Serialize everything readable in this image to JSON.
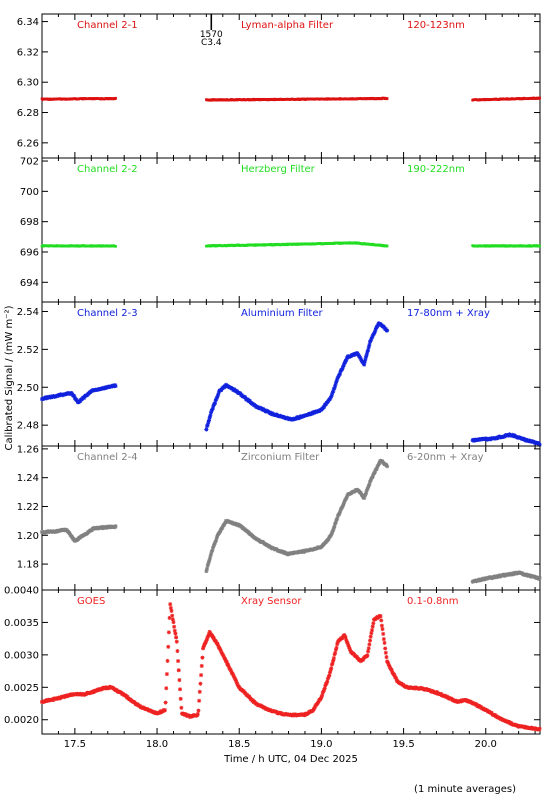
{
  "figure": {
    "ylabel": "Calibrated Signal / (mW m⁻²)",
    "xlabel": "Time / h UTC, 04 Dec 2025",
    "footnote": "(1 minute averages)",
    "flare_marker": {
      "time": 18.33,
      "label_top": "1570",
      "label_bottom": "C3.4"
    }
  },
  "chart_data": [
    {
      "type": "scatter",
      "labels": [
        "Channel 2-1",
        "Lyman-alpha Filter",
        "120-123nm"
      ],
      "color": "#dd1111",
      "marker": "dot",
      "xlim": [
        17.3,
        20.33
      ],
      "ylim": [
        6.25,
        6.345
      ],
      "yticks": [
        "6.26",
        "6.28",
        "6.30",
        "6.32",
        "6.34"
      ],
      "segments": [
        {
          "x_range": [
            17.3,
            17.75
          ],
          "points": [
            [
              17.3,
              6.2888
            ],
            [
              17.75,
              6.2892
            ]
          ]
        },
        {
          "x_range": [
            18.3,
            19.4
          ],
          "points": [
            [
              18.3,
              6.2883
            ],
            [
              18.8,
              6.2887
            ],
            [
              19.4,
              6.2893
            ]
          ]
        },
        {
          "x_range": [
            19.92,
            20.33
          ],
          "points": [
            [
              19.92,
              6.2883
            ],
            [
              20.15,
              6.289
            ],
            [
              20.33,
              6.2895
            ]
          ]
        }
      ]
    },
    {
      "type": "scatter",
      "labels": [
        "Channel 2-2",
        "Herzberg Filter",
        "190-222nm"
      ],
      "color": "#22dd22",
      "marker": "dot",
      "xlim": [
        17.3,
        20.33
      ],
      "ylim": [
        692.7,
        702.2
      ],
      "yticks": [
        "694",
        "696",
        "698",
        "700",
        "702"
      ],
      "segments": [
        {
          "x_range": [
            17.3,
            17.75
          ],
          "points": [
            [
              17.3,
              696.4
            ],
            [
              17.75,
              696.4
            ]
          ]
        },
        {
          "x_range": [
            18.3,
            19.4
          ],
          "points": [
            [
              18.3,
              696.4
            ],
            [
              18.8,
              696.5
            ],
            [
              19.2,
              696.6
            ],
            [
              19.4,
              696.4
            ]
          ]
        },
        {
          "x_range": [
            19.92,
            20.33
          ],
          "points": [
            [
              19.92,
              696.4
            ],
            [
              20.33,
              696.4
            ]
          ]
        }
      ]
    },
    {
      "type": "scatter",
      "labels": [
        "Channel 2-3",
        "Aluminium Filter",
        "17-80nm + Xray"
      ],
      "color": "#1122dd",
      "marker": "star",
      "xlim": [
        17.3,
        20.33
      ],
      "ylim": [
        2.469,
        2.545
      ],
      "yticks": [
        "2.48",
        "2.50",
        "2.52",
        "2.54"
      ],
      "segments": [
        {
          "x_range": [
            17.3,
            17.75
          ],
          "points": [
            [
              17.3,
              2.494
            ],
            [
              17.42,
              2.496
            ],
            [
              17.48,
              2.497
            ],
            [
              17.52,
              2.492
            ],
            [
              17.6,
              2.498
            ],
            [
              17.75,
              2.501
            ]
          ]
        },
        {
          "x_range": [
            18.3,
            19.4
          ],
          "points": [
            [
              18.3,
              2.478
            ],
            [
              18.33,
              2.487
            ],
            [
              18.38,
              2.498
            ],
            [
              18.42,
              2.501
            ],
            [
              18.5,
              2.497
            ],
            [
              18.6,
              2.49
            ],
            [
              18.7,
              2.486
            ],
            [
              18.82,
              2.483
            ],
            [
              18.9,
              2.485
            ],
            [
              19.0,
              2.488
            ],
            [
              19.06,
              2.495
            ],
            [
              19.1,
              2.505
            ],
            [
              19.16,
              2.516
            ],
            [
              19.22,
              2.518
            ],
            [
              19.26,
              2.512
            ],
            [
              19.3,
              2.525
            ],
            [
              19.35,
              2.534
            ],
            [
              19.4,
              2.53
            ]
          ]
        },
        {
          "x_range": [
            19.92,
            20.33
          ],
          "points": [
            [
              19.92,
              2.472
            ],
            [
              20.05,
              2.473
            ],
            [
              20.15,
              2.475
            ],
            [
              20.25,
              2.472
            ],
            [
              20.33,
              2.47
            ]
          ]
        }
      ]
    },
    {
      "type": "scatter",
      "labels": [
        "Channel 2-4",
        "Zirconium Filter",
        "6-20nm + Xray"
      ],
      "color": "#808080",
      "marker": "star",
      "xlim": [
        17.3,
        20.33
      ],
      "ylim": [
        1.162,
        1.262
      ],
      "yticks": [
        "1.18",
        "1.20",
        "1.22",
        "1.24",
        "1.26"
      ],
      "segments": [
        {
          "x_range": [
            17.3,
            17.75
          ],
          "points": [
            [
              17.3,
              1.202
            ],
            [
              17.4,
              1.203
            ],
            [
              17.45,
              1.204
            ],
            [
              17.5,
              1.196
            ],
            [
              17.55,
              1.2
            ],
            [
              17.62,
              1.205
            ],
            [
              17.75,
              1.206
            ]
          ]
        },
        {
          "x_range": [
            18.3,
            19.4
          ],
          "points": [
            [
              18.3,
              1.175
            ],
            [
              18.33,
              1.188
            ],
            [
              18.37,
              1.2
            ],
            [
              18.42,
              1.21
            ],
            [
              18.5,
              1.207
            ],
            [
              18.6,
              1.198
            ],
            [
              18.7,
              1.191
            ],
            [
              18.8,
              1.187
            ],
            [
              18.9,
              1.189
            ],
            [
              19.0,
              1.192
            ],
            [
              19.06,
              1.2
            ],
            [
              19.1,
              1.213
            ],
            [
              19.16,
              1.228
            ],
            [
              19.22,
              1.232
            ],
            [
              19.26,
              1.226
            ],
            [
              19.3,
              1.238
            ],
            [
              19.36,
              1.252
            ],
            [
              19.4,
              1.248
            ]
          ]
        },
        {
          "x_range": [
            19.92,
            20.33
          ],
          "points": [
            [
              19.92,
              1.168
            ],
            [
              20.05,
              1.171
            ],
            [
              20.2,
              1.174
            ],
            [
              20.33,
              1.17
            ]
          ]
        }
      ]
    },
    {
      "type": "scatter",
      "labels": [
        "GOES",
        "Xray Sensor",
        "0.1-0.8nm"
      ],
      "color": "#ee2222",
      "marker": "star",
      "xlim": [
        17.3,
        20.33
      ],
      "ylim": [
        0.00178,
        0.004
      ],
      "yticks": [
        "0.0020",
        "0.0025",
        "0.0030",
        "0.0035",
        "0.0040"
      ],
      "segments": [
        {
          "x_range": [
            17.3,
            20.33
          ],
          "points": [
            [
              17.3,
              0.00228
            ],
            [
              17.4,
              0.00233
            ],
            [
              17.5,
              0.0024
            ],
            [
              17.55,
              0.00239
            ],
            [
              17.62,
              0.00244
            ],
            [
              17.68,
              0.00249
            ],
            [
              17.72,
              0.0025
            ],
            [
              17.8,
              0.00238
            ],
            [
              17.9,
              0.0022
            ],
            [
              18.0,
              0.0021
            ],
            [
              18.05,
              0.00215
            ],
            [
              18.08,
              0.00379
            ],
            [
              18.12,
              0.0032
            ],
            [
              18.15,
              0.0021
            ],
            [
              18.2,
              0.00205
            ],
            [
              18.25,
              0.00208
            ],
            [
              18.28,
              0.0031
            ],
            [
              18.32,
              0.00335
            ],
            [
              18.36,
              0.0032
            ],
            [
              18.42,
              0.0029
            ],
            [
              18.5,
              0.0025
            ],
            [
              18.6,
              0.00225
            ],
            [
              18.7,
              0.00213
            ],
            [
              18.8,
              0.00207
            ],
            [
              18.9,
              0.00208
            ],
            [
              18.95,
              0.00215
            ],
            [
              19.0,
              0.00235
            ],
            [
              19.05,
              0.0027
            ],
            [
              19.1,
              0.0032
            ],
            [
              19.14,
              0.0033
            ],
            [
              19.18,
              0.00305
            ],
            [
              19.24,
              0.0029
            ],
            [
              19.28,
              0.003
            ],
            [
              19.32,
              0.00355
            ],
            [
              19.36,
              0.0036
            ],
            [
              19.4,
              0.0029
            ],
            [
              19.46,
              0.0026
            ],
            [
              19.52,
              0.0025
            ],
            [
              19.62,
              0.00248
            ],
            [
              19.72,
              0.0024
            ],
            [
              19.82,
              0.00228
            ],
            [
              19.88,
              0.0023
            ],
            [
              19.92,
              0.00226
            ],
            [
              20.0,
              0.00215
            ],
            [
              20.1,
              0.002
            ],
            [
              20.2,
              0.0019
            ],
            [
              20.33,
              0.00185
            ]
          ]
        }
      ]
    }
  ],
  "x_axis": {
    "ticks": [
      "17.5",
      "18.0",
      "18.5",
      "19.0",
      "19.5",
      "20.0"
    ]
  }
}
